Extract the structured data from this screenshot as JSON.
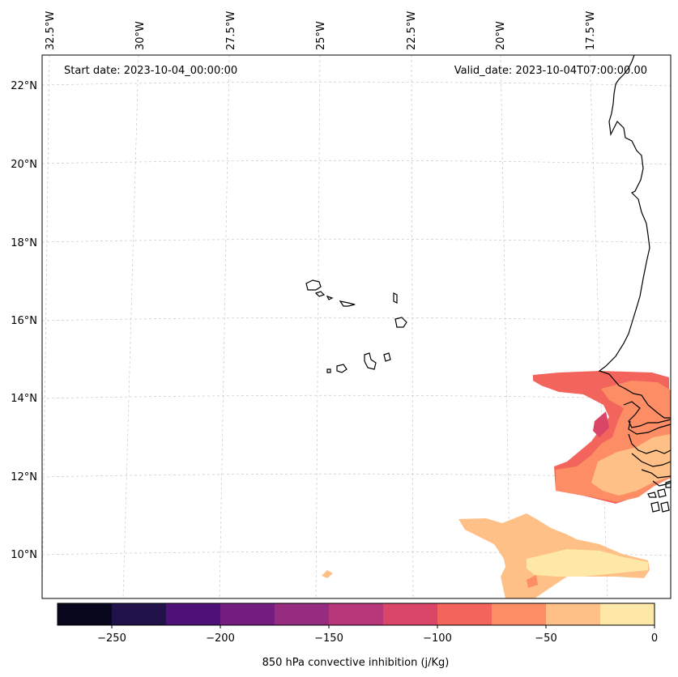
{
  "map": {
    "start_date_label": "Start date: 2023-10-04_00:00:00",
    "valid_date_label": "Valid_date: 2023-10-04T07:00:00.00",
    "lon_labels": [
      "32.5°W",
      "30°W",
      "27.5°W",
      "25°W",
      "22.5°W",
      "20°W",
      "17.5°W"
    ],
    "lat_labels": [
      "22°N",
      "20°N",
      "18°N",
      "16°N",
      "14°N",
      "12°N",
      "10°N"
    ]
  },
  "colorbar": {
    "label": "850 hPa convective inhibition (j/Kg)",
    "ticks": [
      "−250",
      "−200",
      "−150",
      "−100",
      "−50",
      "0"
    ],
    "colors": [
      "#07061c",
      "#21124a",
      "#4e1178",
      "#741c80",
      "#952c80",
      "#b8377a",
      "#da4668",
      "#f3655c",
      "#fc8d65",
      "#fec086",
      "#fde8a8"
    ]
  }
}
